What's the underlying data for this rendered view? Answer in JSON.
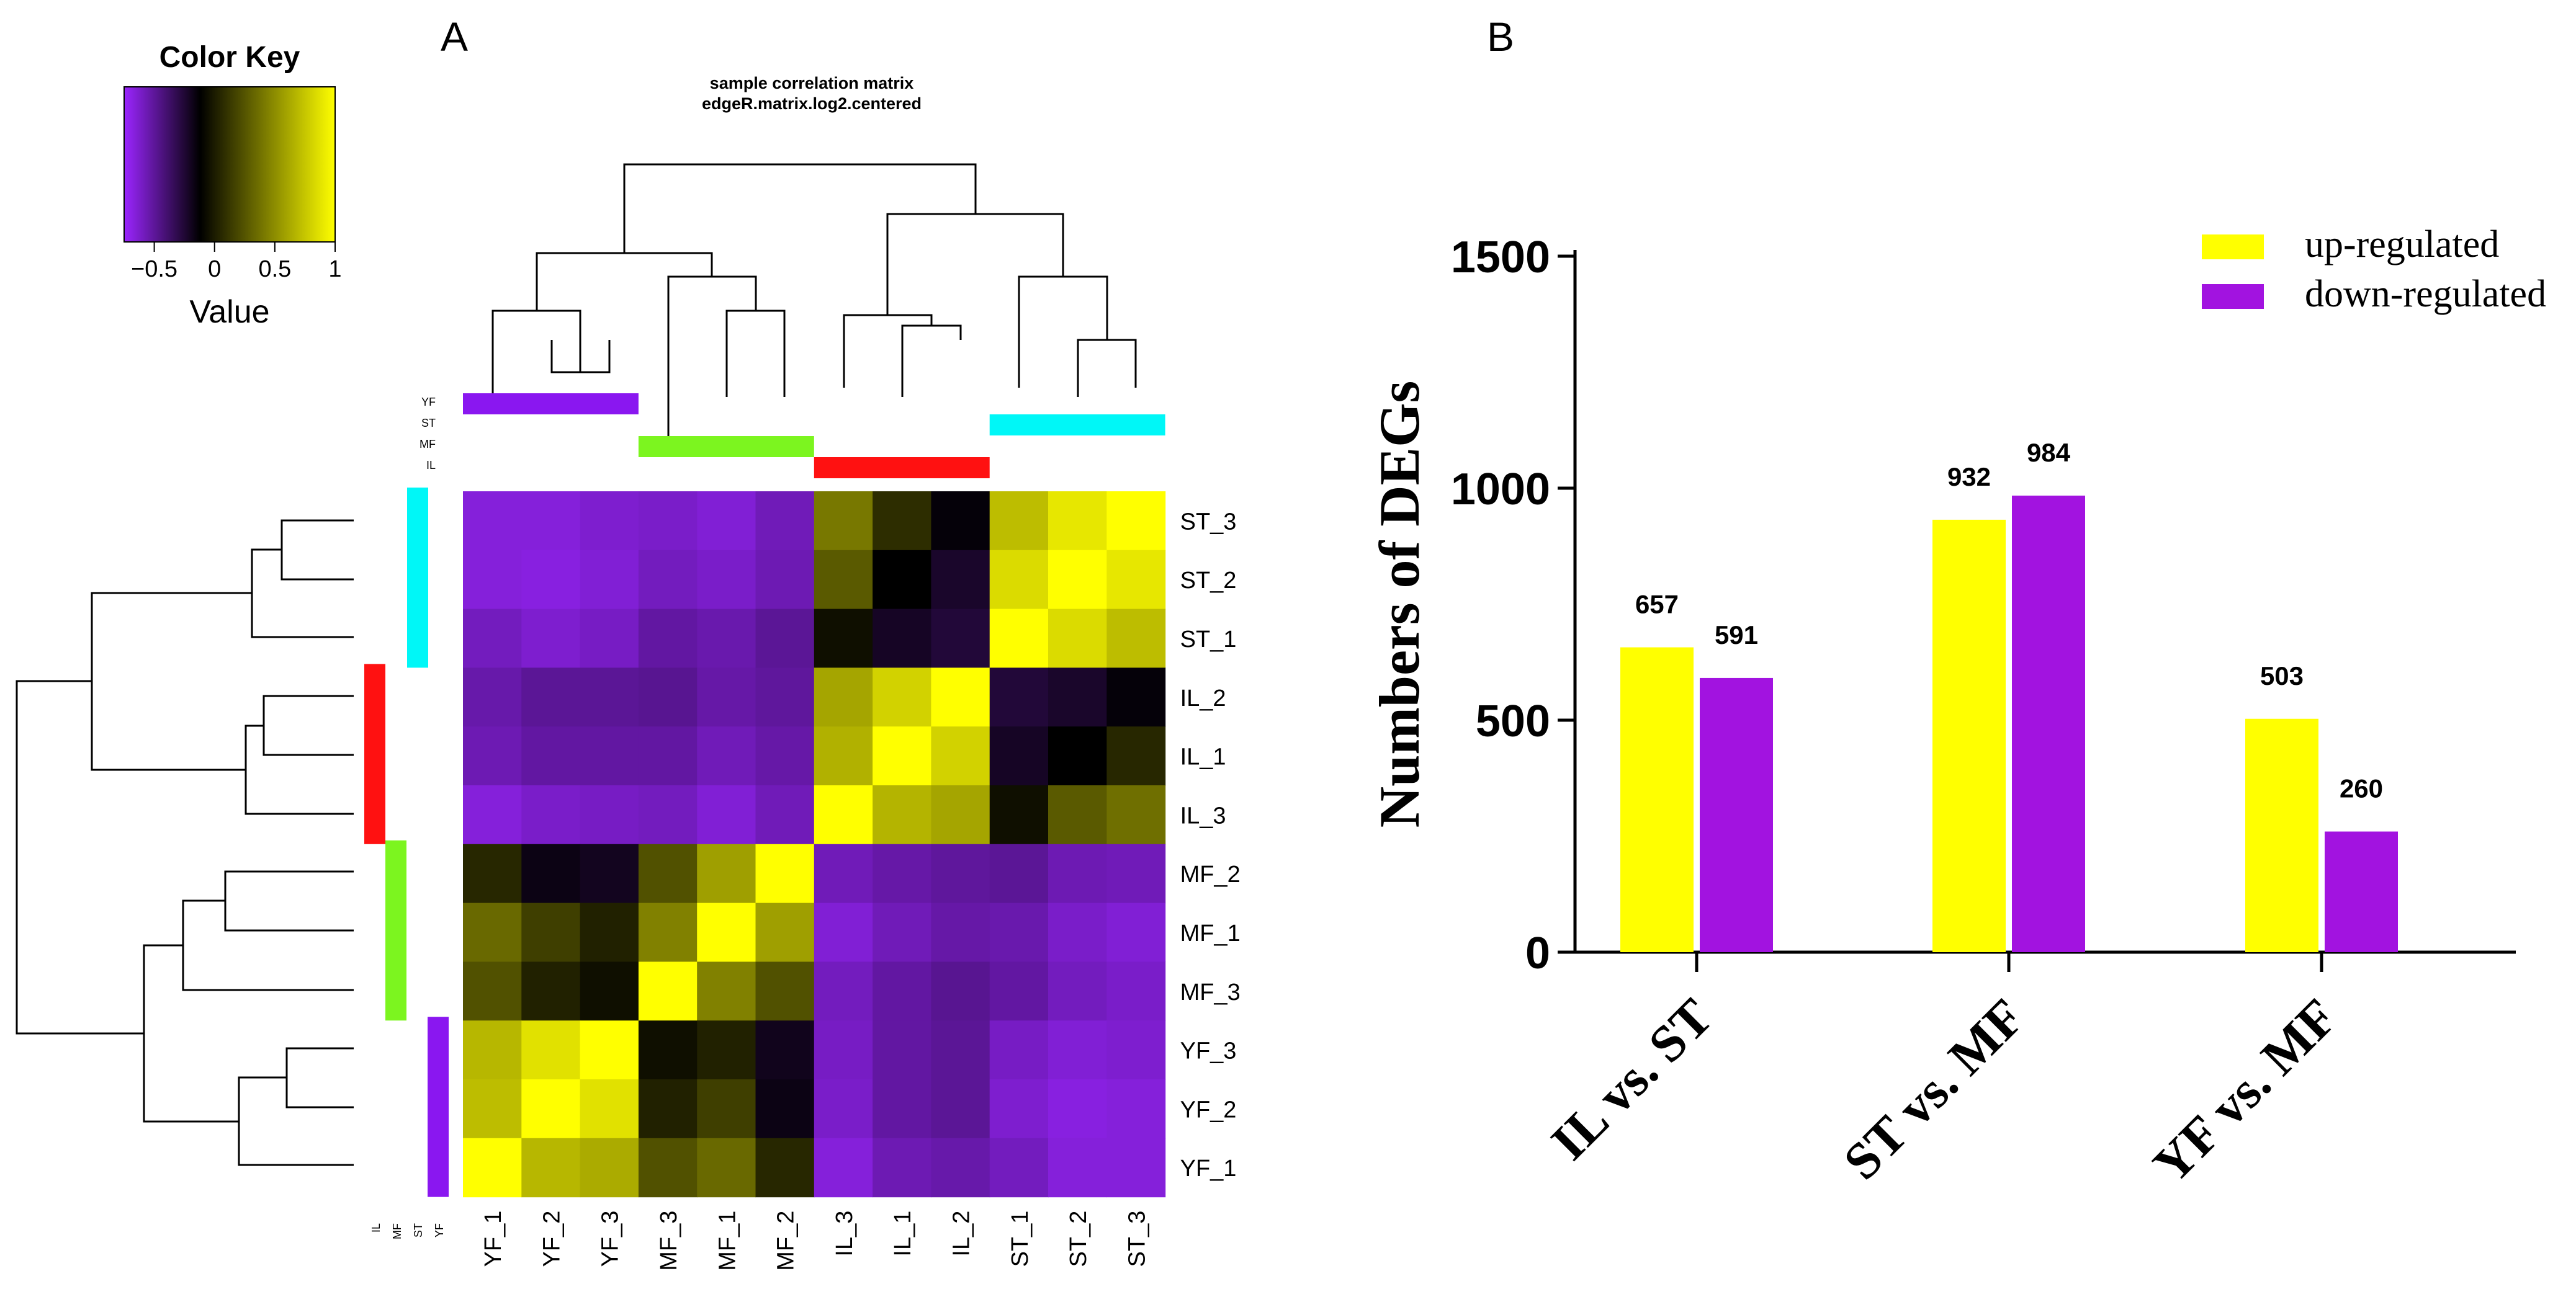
{
  "panel_a": {
    "label": "A",
    "title": "sample correlation matrix",
    "subtitle": "edgeR.matrix.log2.centered",
    "color_key": {
      "title": "Color Key",
      "xlabel": "Value",
      "ticks": [
        "−0.5",
        "0",
        "0.5",
        "1"
      ],
      "tick_values": [
        -0.5,
        0,
        0.5,
        1
      ],
      "range": [
        -0.75,
        1
      ],
      "low_color": "#9b25ff",
      "mid_color": "#000000",
      "high_color": "#ffff00"
    },
    "group_colors": {
      "YF": "#8a17f0",
      "ST": "#00f7f7",
      "MF": "#7cf51f",
      "IL": "#ff1111"
    },
    "group_legend": [
      "YF",
      "ST",
      "MF",
      "IL"
    ],
    "col_group_legend": [
      "IL",
      "MF",
      "ST",
      "YF"
    ]
  },
  "panel_b": {
    "label": "B",
    "colors": {
      "up": "#ffff00",
      "down": "#a213e0"
    }
  },
  "chart_data": [
    {
      "type": "heatmap",
      "title": "sample correlation matrix",
      "subtitle": "edgeR.matrix.log2.centered",
      "row_labels": [
        "ST_3",
        "ST_2",
        "ST_1",
        "IL_2",
        "IL_1",
        "IL_3",
        "MF_2",
        "MF_1",
        "MF_3",
        "YF_3",
        "YF_2",
        "YF_1"
      ],
      "col_labels": [
        "YF_1",
        "YF_2",
        "YF_3",
        "MF_3",
        "MF_1",
        "MF_2",
        "IL_3",
        "IL_1",
        "IL_2",
        "ST_1",
        "ST_2",
        "ST_3"
      ],
      "row_groups": [
        "ST",
        "ST",
        "ST",
        "IL",
        "IL",
        "IL",
        "MF",
        "MF",
        "MF",
        "YF",
        "YF",
        "YF"
      ],
      "col_groups": [
        "YF",
        "YF",
        "YF",
        "MF",
        "MF",
        "MF",
        "IL",
        "IL",
        "IL",
        "ST",
        "ST",
        "ST"
      ],
      "values": [
        [
          -0.62,
          -0.62,
          -0.58,
          -0.56,
          -0.6,
          -0.5,
          0.55,
          0.3,
          0.12,
          0.78,
          0.92,
          1.0
        ],
        [
          -0.62,
          -0.64,
          -0.6,
          -0.52,
          -0.56,
          -0.48,
          0.45,
          0.15,
          0.0,
          0.88,
          1.0,
          0.92
        ],
        [
          -0.52,
          -0.58,
          -0.54,
          -0.42,
          -0.46,
          -0.38,
          0.2,
          0.02,
          -0.05,
          1.0,
          0.88,
          0.78
        ],
        [
          -0.45,
          -0.38,
          -0.38,
          -0.36,
          -0.44,
          -0.4,
          0.7,
          0.85,
          1.0,
          -0.05,
          0.0,
          0.12
        ],
        [
          -0.48,
          -0.42,
          -0.42,
          -0.42,
          -0.5,
          -0.44,
          0.74,
          1.0,
          0.85,
          0.02,
          0.15,
          0.28
        ],
        [
          -0.62,
          -0.56,
          -0.54,
          -0.52,
          -0.6,
          -0.5,
          1.0,
          0.75,
          0.7,
          0.2,
          0.45,
          0.52
        ],
        [
          0.28,
          0.08,
          0.04,
          0.42,
          0.68,
          1.0,
          -0.5,
          -0.44,
          -0.4,
          -0.38,
          -0.48,
          -0.5
        ],
        [
          0.5,
          0.36,
          0.26,
          0.58,
          1.0,
          0.68,
          -0.6,
          -0.5,
          -0.44,
          -0.46,
          -0.56,
          -0.6
        ],
        [
          0.42,
          0.26,
          0.2,
          1.0,
          0.58,
          0.42,
          -0.52,
          -0.42,
          -0.36,
          -0.42,
          -0.52,
          -0.56
        ],
        [
          0.76,
          0.9,
          1.0,
          0.2,
          0.26,
          0.05,
          -0.54,
          -0.42,
          -0.38,
          -0.54,
          -0.6,
          -0.58
        ],
        [
          0.78,
          1.0,
          0.9,
          0.26,
          0.36,
          0.08,
          -0.56,
          -0.42,
          -0.38,
          -0.58,
          -0.64,
          -0.62
        ],
        [
          1.0,
          0.76,
          0.72,
          0.42,
          0.5,
          0.28,
          -0.62,
          -0.48,
          -0.45,
          -0.52,
          -0.62,
          -0.62
        ]
      ]
    },
    {
      "type": "bar",
      "categories": [
        "IL vs. ST",
        "ST vs. MF",
        "YF vs. MF"
      ],
      "series": [
        {
          "name": "up-regulated",
          "values": [
            657,
            932,
            503
          ]
        },
        {
          "name": "down-regulated",
          "values": [
            591,
            984,
            260
          ]
        }
      ],
      "data_labels": [
        [
          "657",
          "932",
          "503"
        ],
        [
          "591",
          "984",
          "260"
        ]
      ],
      "title": "",
      "xlabel": "",
      "ylabel": "Numbers of DEGs",
      "ylim": [
        0,
        1500
      ],
      "yticks": [
        0,
        500,
        1000,
        1500
      ],
      "legend": "top-right",
      "grid": false
    }
  ]
}
